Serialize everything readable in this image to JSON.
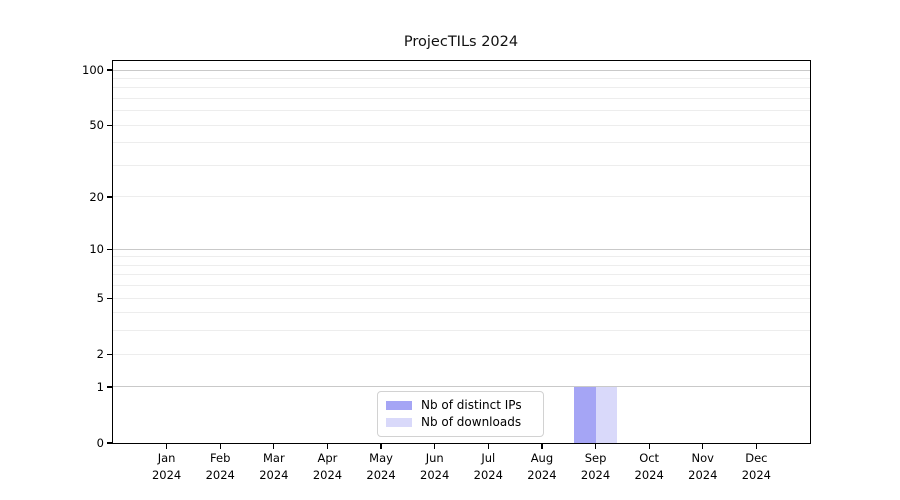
{
  "chart_data": {
    "type": "bar",
    "title": "ProjecTILs 2024",
    "categories": [
      "Jan 2024",
      "Feb 2024",
      "Mar 2024",
      "Apr 2024",
      "May 2024",
      "Jun 2024",
      "Jul 2024",
      "Aug 2024",
      "Sep 2024",
      "Oct 2024",
      "Nov 2024",
      "Dec 2024"
    ],
    "x_axis": {
      "months": [
        "Jan",
        "Feb",
        "Mar",
        "Apr",
        "May",
        "Jun",
        "Jul",
        "Aug",
        "Sep",
        "Oct",
        "Nov",
        "Dec"
      ],
      "year": "2024"
    },
    "series": [
      {
        "name": "Nb of distinct IPs",
        "color": "#a5a5f5",
        "values": [
          0,
          0,
          0,
          0,
          0,
          0,
          0,
          0,
          1,
          0,
          0,
          0
        ]
      },
      {
        "name": "Nb of downloads",
        "color": "#d9d9fa",
        "values": [
          0,
          0,
          0,
          0,
          0,
          0,
          0,
          0,
          1,
          0,
          0,
          0
        ]
      }
    ],
    "y_axis": {
      "scale": "log1p",
      "ticks": [
        0,
        1,
        2,
        5,
        10,
        20,
        50,
        100
      ],
      "max": 112,
      "major_gridlines": [
        1,
        10,
        100
      ],
      "minor_gridlines": [
        2,
        3,
        4,
        5,
        6,
        7,
        8,
        9,
        20,
        30,
        40,
        50,
        60,
        70,
        80,
        90
      ],
      "major_grid_color": "#c9c9c9",
      "minor_grid_color": "#ededed"
    },
    "legend": {
      "position": "inside-bottom-center",
      "entries": [
        "Nb of distinct IPs",
        "Nb of downloads"
      ]
    },
    "colors": {
      "axis": "#000000",
      "background": "#ffffff"
    }
  }
}
